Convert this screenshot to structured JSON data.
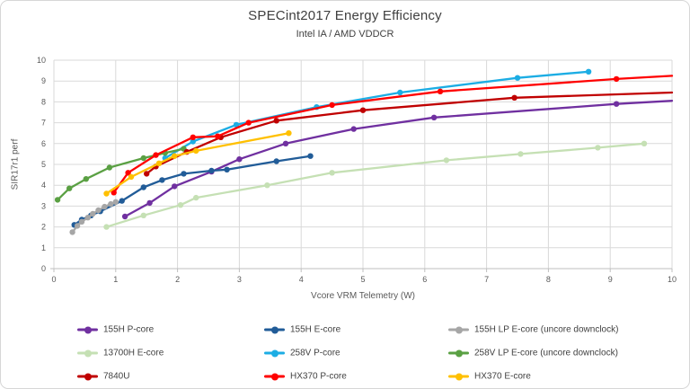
{
  "chart_data": {
    "type": "line",
    "title": "SPECint2017 Energy Efficiency",
    "subtitle": "Intel IA / AMD VDDCR",
    "xlabel": "Vcore VRM Telemetry (W)",
    "ylabel": "SIR17r1 perf",
    "xlim": [
      0,
      10
    ],
    "ylim": [
      0,
      10
    ],
    "x_tick_step": 1,
    "y_tick_step": 1,
    "grid": true,
    "legend_position": "bottom",
    "grid_color": "#d9d9d9",
    "axis_color": "#bfbfbf",
    "tick_label_color": "#595959",
    "series": [
      {
        "name": "155H P-core",
        "color": "#7030A0",
        "points": [
          [
            1.15,
            2.5
          ],
          [
            1.55,
            3.15
          ],
          [
            1.95,
            3.95
          ],
          [
            2.55,
            4.65
          ],
          [
            3.0,
            5.25
          ],
          [
            3.75,
            6.0
          ],
          [
            4.85,
            6.7
          ],
          [
            6.15,
            7.25
          ],
          [
            9.1,
            7.9
          ]
        ],
        "line_to": [
          10,
          8.05
        ]
      },
      {
        "name": "155H E-core",
        "color": "#215C98",
        "points": [
          [
            0.33,
            2.1
          ],
          [
            0.45,
            2.35
          ],
          [
            0.6,
            2.55
          ],
          [
            0.75,
            2.75
          ],
          [
            1.1,
            3.25
          ],
          [
            1.45,
            3.9
          ],
          [
            1.75,
            4.25
          ],
          [
            2.1,
            4.55
          ],
          [
            2.55,
            4.7
          ],
          [
            2.8,
            4.75
          ],
          [
            3.6,
            5.15
          ],
          [
            4.15,
            5.4
          ]
        ]
      },
      {
        "name": "155H LP E-core (uncore downclock)",
        "color": "#A6A6A6",
        "points": [
          [
            0.3,
            1.75
          ],
          [
            0.38,
            2.05
          ],
          [
            0.45,
            2.25
          ],
          [
            0.55,
            2.45
          ],
          [
            0.63,
            2.63
          ],
          [
            0.72,
            2.8
          ],
          [
            0.82,
            2.97
          ],
          [
            0.92,
            3.1
          ],
          [
            1.0,
            3.2
          ]
        ]
      },
      {
        "name": "13700H E-core",
        "color": "#C5E0B4",
        "points": [
          [
            0.85,
            2.0
          ],
          [
            1.45,
            2.55
          ],
          [
            2.05,
            3.05
          ],
          [
            2.3,
            3.4
          ],
          [
            3.45,
            4.0
          ],
          [
            4.5,
            4.6
          ],
          [
            6.35,
            5.2
          ],
          [
            7.55,
            5.5
          ],
          [
            8.8,
            5.8
          ],
          [
            9.55,
            6.0
          ]
        ]
      },
      {
        "name": "258V P-core",
        "color": "#1CADE4",
        "points": [
          [
            1.8,
            5.3
          ],
          [
            2.25,
            6.1
          ],
          [
            2.95,
            6.9
          ],
          [
            4.25,
            7.75
          ],
          [
            5.6,
            8.45
          ],
          [
            7.5,
            9.15
          ],
          [
            8.65,
            9.45
          ]
        ]
      },
      {
        "name": "258V LP E-core (uncore downclock)",
        "color": "#5AA043",
        "points": [
          [
            0.06,
            3.3
          ],
          [
            0.25,
            3.85
          ],
          [
            0.52,
            4.3
          ],
          [
            0.9,
            4.85
          ],
          [
            1.45,
            5.3
          ],
          [
            1.8,
            5.55
          ],
          [
            2.1,
            5.75
          ]
        ]
      },
      {
        "name": "7840U",
        "color": "#C00000",
        "points": [
          [
            1.5,
            4.55
          ],
          [
            1.65,
            4.9
          ],
          [
            2.15,
            5.6
          ],
          [
            2.7,
            6.3
          ],
          [
            3.6,
            7.1
          ],
          [
            5.0,
            7.6
          ],
          [
            7.45,
            8.2
          ]
        ],
        "line_to": [
          10,
          8.45
        ]
      },
      {
        "name": "HX370 P-core",
        "color": "#FF0000",
        "points": [
          [
            0.97,
            3.65
          ],
          [
            1.2,
            4.6
          ],
          [
            1.65,
            5.45
          ],
          [
            2.25,
            6.3
          ],
          [
            2.65,
            6.35
          ],
          [
            3.15,
            7.0
          ],
          [
            4.5,
            7.85
          ],
          [
            6.25,
            8.5
          ],
          [
            9.1,
            9.1
          ]
        ],
        "line_to": [
          10,
          9.25
        ]
      },
      {
        "name": "HX370 E-core",
        "color": "#FFC000",
        "points": [
          [
            0.85,
            3.6
          ],
          [
            1.25,
            4.4
          ],
          [
            1.7,
            5.05
          ],
          [
            1.95,
            5.4
          ],
          [
            2.3,
            5.65
          ],
          [
            3.8,
            6.5
          ]
        ]
      }
    ]
  }
}
